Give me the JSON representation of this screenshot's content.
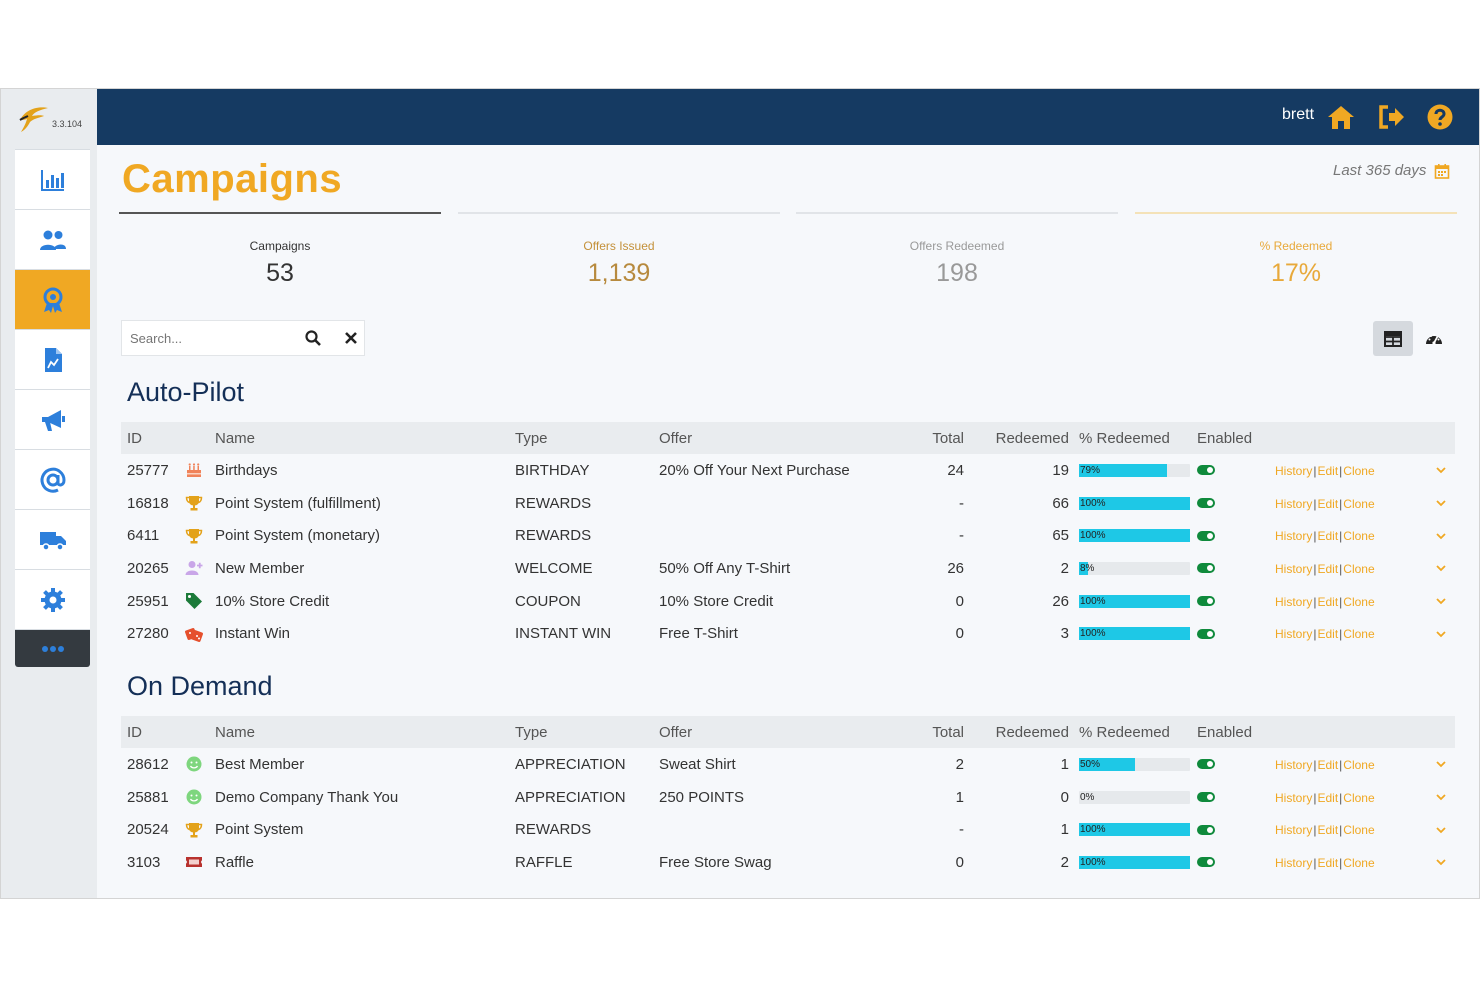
{
  "app": {
    "version": "3.3.104",
    "user": "brett"
  },
  "page": {
    "title": "Campaigns",
    "date_range": "Last 365 days"
  },
  "colors": {
    "brand_orange": "#f0a823",
    "header_navy": "#153a62",
    "progress_cyan": "#1ec8e6",
    "enabled_green": "#0f8a3c",
    "nav_blue": "#2d7fdb"
  },
  "stats": [
    {
      "label": "Campaigns",
      "value": "53"
    },
    {
      "label": "Offers Issued",
      "value": "1,139"
    },
    {
      "label": "Offers Redeemed",
      "value": "198"
    },
    {
      "label": "% Redeemed",
      "value": "17%"
    }
  ],
  "search": {
    "placeholder": "Search..."
  },
  "columns": {
    "id": "ID",
    "name": "Name",
    "type": "Type",
    "offer": "Offer",
    "total": "Total",
    "redeemed": "Redeemed",
    "pct": "% Redeemed",
    "enabled": "Enabled"
  },
  "actions": {
    "history": "History",
    "edit": "Edit",
    "clone": "Clone"
  },
  "sections": [
    {
      "title": "Auto-Pilot",
      "rows": [
        {
          "id": "25777",
          "icon": "birthday-cake-icon",
          "name": "Birthdays",
          "type": "BIRTHDAY",
          "offer": "20% Off Your Next Purchase",
          "total": "24",
          "redeemed": "19",
          "pct": 79,
          "pct_label": "79%"
        },
        {
          "id": "16818",
          "icon": "trophy-icon",
          "name": "Point System (fulfillment)",
          "type": "REWARDS",
          "offer": "",
          "total": "-",
          "redeemed": "66",
          "pct": 100,
          "pct_label": "100%"
        },
        {
          "id": "6411",
          "icon": "trophy-icon",
          "name": "Point System (monetary)",
          "type": "REWARDS",
          "offer": "",
          "total": "-",
          "redeemed": "65",
          "pct": 100,
          "pct_label": "100%"
        },
        {
          "id": "20265",
          "icon": "user-plus-icon",
          "name": "New Member",
          "type": "WELCOME",
          "offer": "50% Off Any T-Shirt",
          "total": "26",
          "redeemed": "2",
          "pct": 8,
          "pct_label": "8%"
        },
        {
          "id": "25951",
          "icon": "tag-icon",
          "name": "10% Store Credit",
          "type": "COUPON",
          "offer": "10% Store Credit",
          "total": "0",
          "redeemed": "26",
          "pct": 100,
          "pct_label": "100%"
        },
        {
          "id": "27280",
          "icon": "dice-icon",
          "name": "Instant Win",
          "type": "INSTANT WIN",
          "offer": "Free T-Shirt",
          "total": "0",
          "redeemed": "3",
          "pct": 100,
          "pct_label": "100%"
        }
      ]
    },
    {
      "title": "On Demand",
      "rows": [
        {
          "id": "28612",
          "icon": "smile-icon",
          "name": "Best Member",
          "type": "APPRECIATION",
          "offer": "Sweat Shirt",
          "total": "2",
          "redeemed": "1",
          "pct": 50,
          "pct_label": "50%"
        },
        {
          "id": "25881",
          "icon": "smile-icon",
          "name": "Demo Company Thank You",
          "type": "APPRECIATION",
          "offer": "250 POINTS",
          "total": "1",
          "redeemed": "0",
          "pct": 0,
          "pct_label": "0%"
        },
        {
          "id": "20524",
          "icon": "trophy-icon",
          "name": "Point System",
          "type": "REWARDS",
          "offer": "",
          "total": "-",
          "redeemed": "1",
          "pct": 100,
          "pct_label": "100%"
        },
        {
          "id": "3103",
          "icon": "ticket-icon",
          "name": "Raffle",
          "type": "RAFFLE",
          "offer": "Free Store Swag",
          "total": "0",
          "redeemed": "2",
          "pct": 100,
          "pct_label": "100%"
        }
      ]
    }
  ]
}
